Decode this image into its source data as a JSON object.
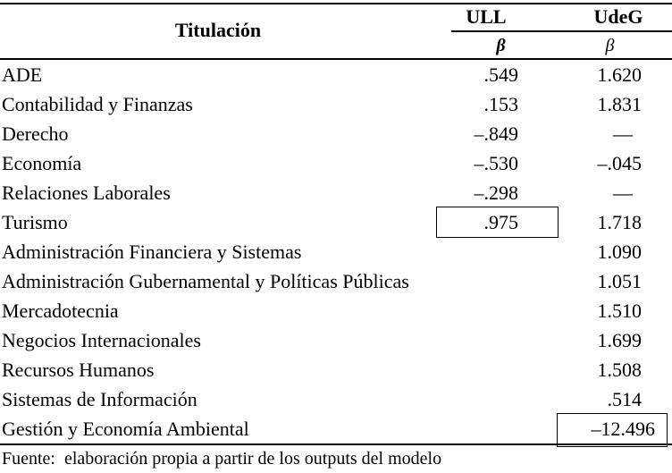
{
  "page": {
    "background_color": "#ffffff",
    "text_color": "#000000"
  },
  "table": {
    "stub_header": "Titulación",
    "groups": [
      {
        "label": "ULL",
        "beta": "β"
      },
      {
        "label": "UdeG",
        "beta": "β"
      }
    ],
    "rows": [
      {
        "label": "ADE",
        "ull": ".549",
        "udeg": "1.620"
      },
      {
        "label": "Contabilidad y Finanzas",
        "ull": ".153",
        "udeg": "1.831"
      },
      {
        "label": "Derecho",
        "ull": "–.849",
        "udeg": "—",
        "udeg_dash": true
      },
      {
        "label": "Economía",
        "ull": "–.530",
        "udeg": "–.045"
      },
      {
        "label": "Relaciones Laborales",
        "ull": "–.298",
        "udeg": "—",
        "udeg_dash": true
      },
      {
        "label": "Turismo",
        "ull": ".975",
        "udeg": "1.718",
        "ull_boxed": true
      },
      {
        "label": "Administración Financiera y Sistemas",
        "ull": "",
        "udeg": "1.090"
      },
      {
        "label": "Administración Gubernamental y Políticas Públicas",
        "ull": "",
        "udeg": "1.051"
      },
      {
        "label": "Mercadotecnia",
        "ull": "",
        "udeg": "1.510"
      },
      {
        "label": "Negocios Internacionales",
        "ull": "",
        "udeg": "1.699"
      },
      {
        "label": "Recursos Humanos",
        "ull": "",
        "udeg": "1.508"
      },
      {
        "label": "Sistemas de Información",
        "ull": "",
        "udeg": ".514"
      },
      {
        "label": "Gestión y Economía Ambiental",
        "ull": "",
        "udeg": "–12.496",
        "udeg_boxed": true
      }
    ],
    "source_note": "Fuente:  elaboración propia a partir de los outputs del modelo"
  }
}
